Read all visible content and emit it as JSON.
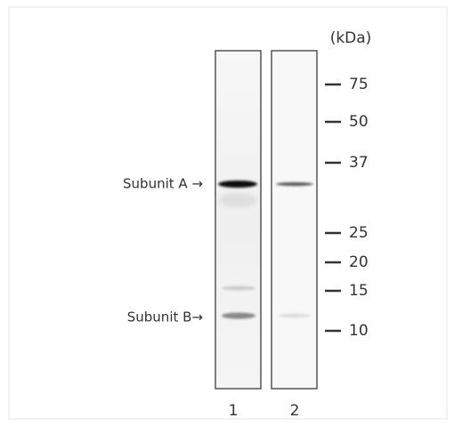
{
  "figure": {
    "unit": "(kDa)",
    "markers": [
      "75",
      "50",
      "37",
      "25",
      "20",
      "15",
      "10"
    ],
    "lanes": [
      "1",
      "2"
    ],
    "bands": [
      "Subunit A →",
      "Subunit B→"
    ]
  }
}
